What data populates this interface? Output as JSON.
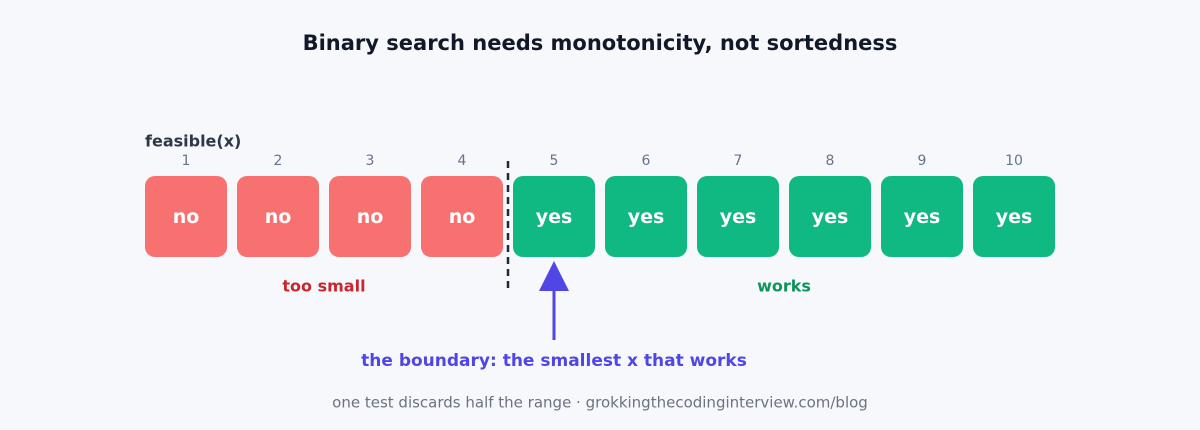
{
  "title": "Binary search needs monotonicity, not sortedness",
  "row_label": "feasible(x)",
  "groups": [
    {
      "label": "too small",
      "color": "#f87171",
      "label_color": "#c8262d",
      "cells": [
        {
          "x": 1,
          "value": "no"
        },
        {
          "x": 2,
          "value": "no"
        },
        {
          "x": 3,
          "value": "no"
        },
        {
          "x": 4,
          "value": "no"
        }
      ]
    },
    {
      "label": "works",
      "color": "#10b981",
      "label_color": "#0e9458",
      "cells": [
        {
          "x": 5,
          "value": "yes"
        },
        {
          "x": 6,
          "value": "yes"
        },
        {
          "x": 7,
          "value": "yes"
        },
        {
          "x": 8,
          "value": "yes"
        },
        {
          "x": 9,
          "value": "yes"
        },
        {
          "x": 10,
          "value": "yes"
        }
      ]
    }
  ],
  "annotation": "the boundary: the smallest x that works",
  "footer": "one test discards half the range · grokkingthecodinginterview.com/blog"
}
